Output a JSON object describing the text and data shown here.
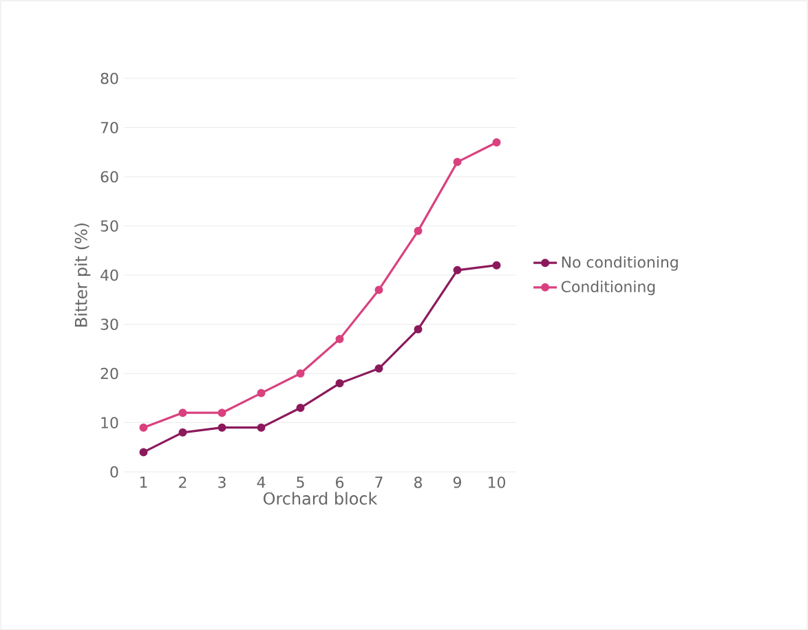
{
  "chart_data": {
    "type": "line",
    "xlabel": "Orchard block",
    "ylabel": "Bitter pit (%)",
    "categories": [
      "1",
      "2",
      "3",
      "4",
      "5",
      "6",
      "7",
      "8",
      "9",
      "10"
    ],
    "series": [
      {
        "name": "No conditioning",
        "color": "#8b1a5c",
        "values": [
          4,
          8,
          9,
          9,
          13,
          18,
          21,
          29,
          41,
          42
        ]
      },
      {
        "name": "Conditioning",
        "color": "#d9417f",
        "values": [
          9,
          12,
          12,
          16,
          20,
          27,
          37,
          49,
          63,
          67
        ]
      }
    ],
    "ylim": [
      0,
      80
    ],
    "yticks": [
      0,
      10,
      20,
      30,
      40,
      50,
      60,
      70,
      80
    ],
    "grid": "y",
    "legend": "right",
    "marker": "circle",
    "line_style": "solid"
  }
}
